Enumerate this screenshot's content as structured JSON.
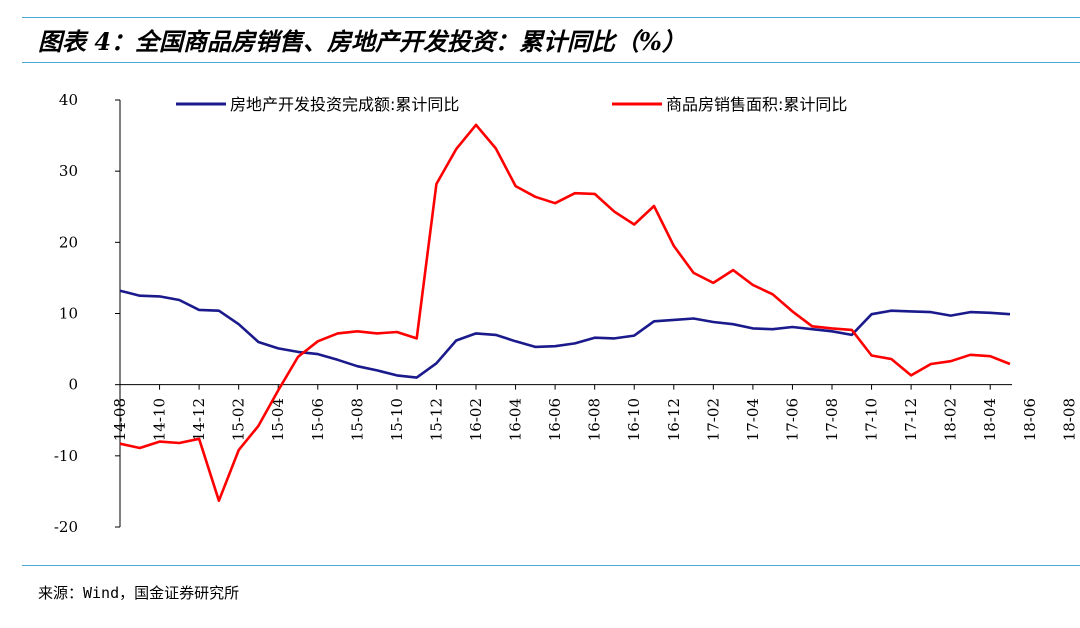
{
  "title": "图表 4：全国商品房销售、房地产开发投资：累计同比（%）",
  "source": "来源：Wind，国金证券研究所",
  "colors": {
    "investment": "#1a1a8c",
    "sales": "#ff0000",
    "rule": "#4aa8d8"
  },
  "chart_data": {
    "type": "line",
    "ylim": [
      -20,
      40
    ],
    "yticks": [
      -20,
      -10,
      0,
      10,
      20,
      30,
      40
    ],
    "x": [
      "14-08",
      "14-09",
      "14-10",
      "14-11",
      "14-12",
      "15-02",
      "15-03",
      "15-04",
      "15-05",
      "15-06",
      "15-07",
      "15-08",
      "15-09",
      "15-10",
      "15-11",
      "15-12",
      "16-02",
      "16-03",
      "16-04",
      "16-05",
      "16-06",
      "16-07",
      "16-08",
      "16-09",
      "16-10",
      "16-11",
      "16-12",
      "17-02",
      "17-03",
      "17-04",
      "17-05",
      "17-06",
      "17-07",
      "17-08",
      "17-09",
      "17-10",
      "17-11",
      "17-12",
      "18-02",
      "18-03",
      "18-04",
      "18-05",
      "18-06",
      "18-07",
      "18-08",
      "18-09"
    ],
    "xtick_labels": [
      "14-08",
      "14-10",
      "14-12",
      "15-02",
      "15-04",
      "15-06",
      "15-08",
      "15-10",
      "15-12",
      "16-02",
      "16-04",
      "16-06",
      "16-08",
      "16-10",
      "16-12",
      "17-02",
      "17-04",
      "17-06",
      "17-08",
      "17-10",
      "17-12",
      "18-02",
      "18-04",
      "18-06",
      "18-08"
    ],
    "legend_position": "top",
    "grid": false,
    "series": [
      {
        "name": "房地产开发投资完成额:累计同比",
        "color": "#1a1a8c",
        "values": [
          13.2,
          12.5,
          12.4,
          11.9,
          10.5,
          10.4,
          8.5,
          6.0,
          5.1,
          4.6,
          4.3,
          3.5,
          2.6,
          2.0,
          1.3,
          1.0,
          3.0,
          6.2,
          7.2,
          7.0,
          6.1,
          5.3,
          5.4,
          5.8,
          6.6,
          6.5,
          6.9,
          8.9,
          9.1,
          9.3,
          8.8,
          8.5,
          7.9,
          7.8,
          8.1,
          7.8,
          7.5,
          7.0,
          9.9,
          10.4,
          10.3,
          10.2,
          9.7,
          10.2,
          10.1,
          9.9
        ]
      },
      {
        "name": "商品房销售面积:累计同比",
        "color": "#ff0000",
        "values": [
          -8.3,
          -8.9,
          -8.0,
          -8.2,
          -7.6,
          -16.3,
          -9.2,
          -5.8,
          -0.8,
          3.9,
          6.1,
          7.2,
          7.5,
          7.2,
          7.4,
          6.5,
          28.2,
          33.1,
          36.5,
          33.2,
          27.9,
          26.4,
          25.5,
          26.9,
          26.8,
          24.3,
          22.5,
          25.1,
          19.5,
          15.7,
          14.3,
          16.1,
          14.0,
          12.7,
          10.3,
          8.2,
          7.9,
          7.7,
          4.1,
          3.6,
          1.3,
          2.9,
          3.3,
          4.2,
          4.0,
          2.9
        ]
      }
    ]
  }
}
